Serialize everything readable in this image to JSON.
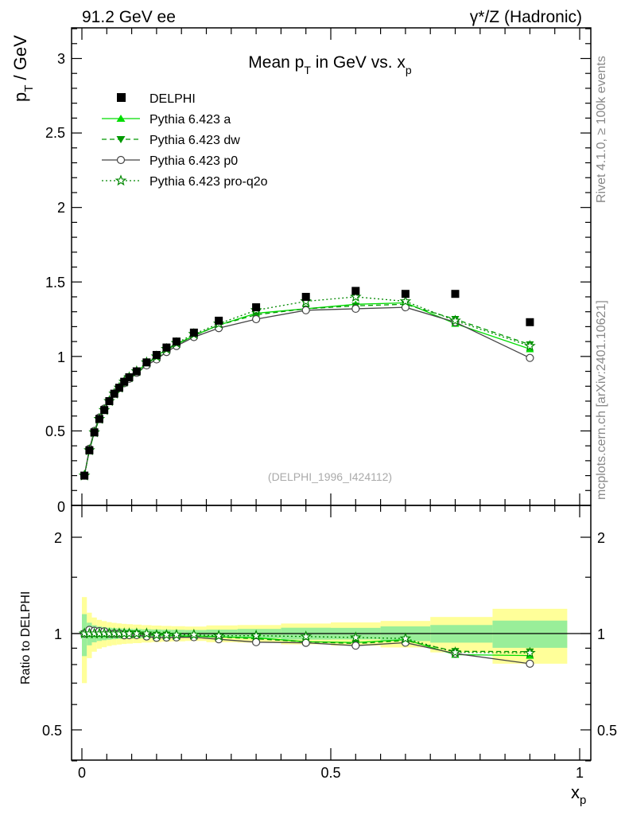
{
  "header": {
    "left": "91.2 GeV ee",
    "right": "γ*/Z (Hadronic)"
  },
  "side_text": {
    "rivet": "Rivet 4.1.0, ≥ 100k events",
    "mcplots": "mcplots.cern.ch [arXiv:2401.10621]"
  },
  "chart_data": {
    "type": "scatter",
    "title": "Mean p_T in GeV vs. x_p",
    "title_parts": {
      "a": "Mean p",
      "sub1": "T",
      "b": " in GeV vs. x",
      "sub2": "p"
    },
    "ylabel_parts": {
      "a": "p",
      "sub": "T",
      "b": " / GeV"
    },
    "xlabel_parts": {
      "a": "x",
      "sub": "p"
    },
    "ratio_ylabel": "Ratio to DELPHI",
    "watermark": "(DELPHI_1996_I424112)",
    "xlim": [
      0,
      1
    ],
    "ylim": [
      0,
      3.2
    ],
    "ratio_ylim": [
      0.35,
      2.3
    ],
    "x_ticks": [
      0,
      0.5,
      1
    ],
    "x_tick_labels": [
      "0",
      "0.5",
      "1"
    ],
    "y_ticks": [
      0,
      0.5,
      1,
      1.5,
      2,
      2.5,
      3
    ],
    "y_tick_labels": [
      "0",
      "0.5",
      "1",
      "1.5",
      "2",
      "2.5",
      "3"
    ],
    "ratio_ticks": [
      0.5,
      1,
      2
    ],
    "ratio_tick_labels": [
      "0.5",
      "1",
      "2"
    ],
    "x": [
      0.005,
      0.015,
      0.025,
      0.035,
      0.045,
      0.055,
      0.065,
      0.075,
      0.085,
      0.095,
      0.11,
      0.13,
      0.15,
      0.17,
      0.19,
      0.225,
      0.275,
      0.35,
      0.45,
      0.55,
      0.65,
      0.75,
      0.9
    ],
    "data": {
      "name": "DELPHI",
      "values": [
        0.2,
        0.37,
        0.49,
        0.58,
        0.64,
        0.7,
        0.75,
        0.79,
        0.83,
        0.86,
        0.9,
        0.96,
        1.01,
        1.06,
        1.1,
        1.16,
        1.24,
        1.33,
        1.4,
        1.44,
        1.42,
        1.42,
        1.23
      ],
      "band_inner": [
        0.01,
        0.01,
        0.01,
        0.01,
        0.01,
        0.01,
        0.01,
        0.01,
        0.01,
        0.01,
        0.01,
        0.01,
        0.01,
        0.01,
        0.01,
        0.01,
        0.012,
        0.015,
        0.02,
        0.02,
        0.025,
        0.03,
        0.04
      ],
      "band_outer": [
        0.02,
        0.02,
        0.02,
        0.02,
        0.02,
        0.02,
        0.02,
        0.02,
        0.02,
        0.02,
        0.02,
        0.02,
        0.02,
        0.02,
        0.02,
        0.02,
        0.025,
        0.028,
        0.035,
        0.04,
        0.045,
        0.06,
        0.08
      ]
    },
    "series": [
      {
        "name": "Pythia 6.423 a",
        "color": "#00dd00",
        "marker": "triangle-up",
        "dash": "",
        "values": [
          0.2,
          0.37,
          0.49,
          0.58,
          0.64,
          0.7,
          0.75,
          0.79,
          0.83,
          0.86,
          0.9,
          0.95,
          1.0,
          1.05,
          1.08,
          1.14,
          1.21,
          1.29,
          1.32,
          1.35,
          1.36,
          1.22,
          1.05
        ]
      },
      {
        "name": "Pythia 6.423 dw",
        "color": "#009900",
        "marker": "triangle-down",
        "dash": "6,4",
        "values": [
          0.2,
          0.37,
          0.49,
          0.58,
          0.64,
          0.7,
          0.75,
          0.79,
          0.83,
          0.86,
          0.9,
          0.95,
          1.0,
          1.05,
          1.08,
          1.14,
          1.21,
          1.28,
          1.32,
          1.34,
          1.35,
          1.25,
          1.08
        ]
      },
      {
        "name": "Pythia 6.423 p0",
        "color": "#444444",
        "marker": "circle-open",
        "dash": "",
        "values": [
          0.2,
          0.38,
          0.5,
          0.59,
          0.65,
          0.7,
          0.75,
          0.79,
          0.82,
          0.85,
          0.89,
          0.94,
          0.98,
          1.03,
          1.07,
          1.13,
          1.19,
          1.25,
          1.31,
          1.32,
          1.33,
          1.23,
          0.99
        ]
      },
      {
        "name": "Pythia 6.423 pro-q2o",
        "color": "#008800",
        "marker": "star-open",
        "dash": "2,3",
        "values": [
          0.2,
          0.37,
          0.49,
          0.58,
          0.64,
          0.7,
          0.75,
          0.79,
          0.83,
          0.86,
          0.9,
          0.96,
          1.0,
          1.05,
          1.09,
          1.15,
          1.22,
          1.31,
          1.37,
          1.4,
          1.37,
          1.24,
          1.07
        ]
      }
    ]
  }
}
